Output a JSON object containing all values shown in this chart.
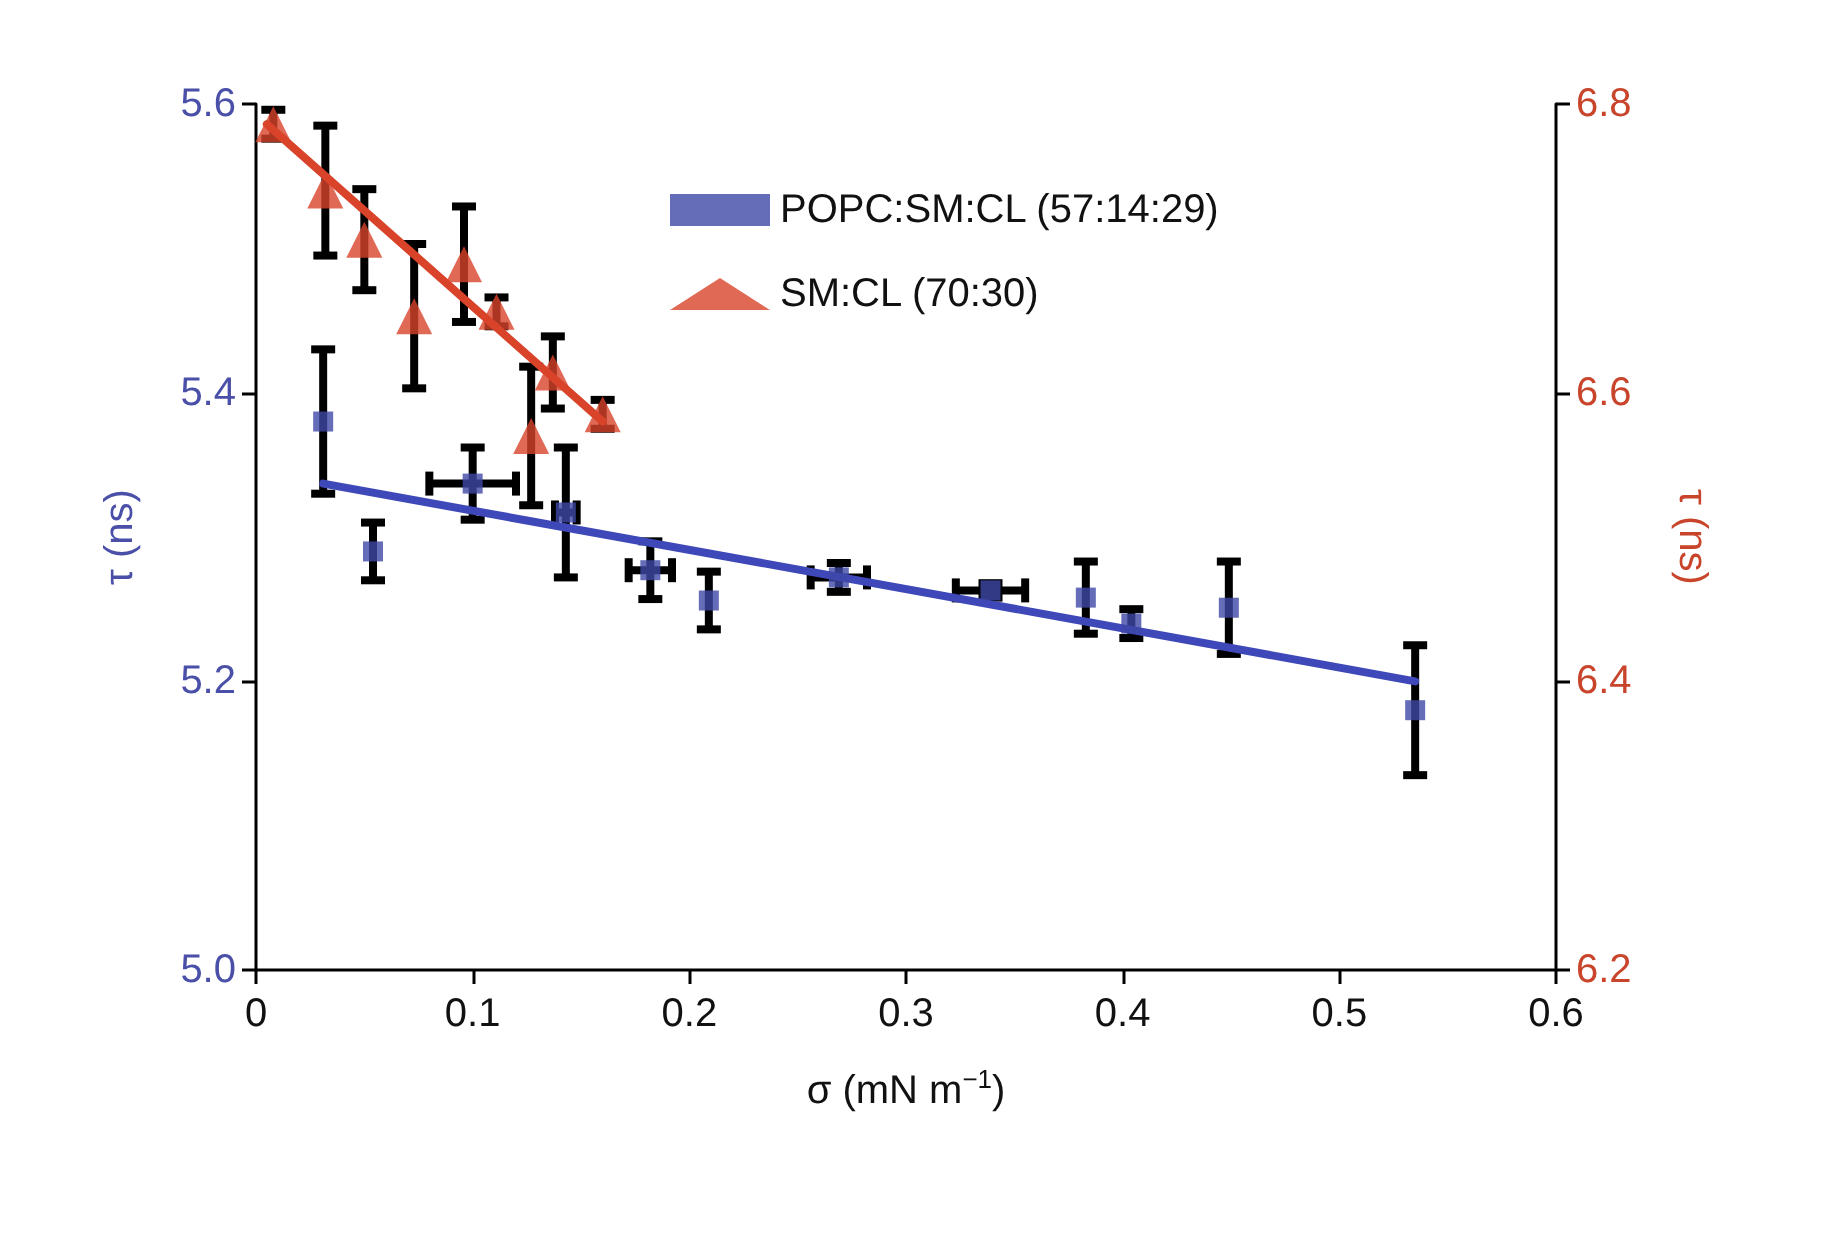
{
  "chart_data": {
    "type": "scatter",
    "xlabel": "σ (mN m$^{−1}$)",
    "ylabel": "τ (ns)",
    "y2label": "τ (ns)",
    "xlim": [
      0,
      0.6
    ],
    "xticks": [
      0,
      0.1,
      0.2,
      0.3,
      0.4,
      0.5,
      0.6
    ],
    "ylim": [
      5.0,
      5.6
    ],
    "yticks": [
      {
        "value": 5,
        "label": "5.0"
      },
      5.2,
      5.4,
      5.6
    ],
    "y2lim": [
      6.2,
      6.8
    ],
    "y2ticks": [
      6.2,
      6.4,
      6.6,
      6.8
    ],
    "grid": false,
    "legend": "top right",
    "series": [
      {
        "name": "POPC:SM:CL (57:14:29)",
        "color": "#3f48a8",
        "marker": "square",
        "x": [
          0.031,
          0.054,
          0.1,
          0.143,
          0.182,
          0.209,
          0.269,
          0.339,
          0.383,
          0.404,
          0.449,
          0.535
        ],
        "values": [
          5.38,
          5.29,
          5.337,
          5.317,
          5.277,
          5.256,
          5.272,
          5.263,
          5.258,
          5.24,
          5.251,
          5.18
        ],
        "errors": [
          [
            5.33,
            5.43
          ],
          0.02,
          0.025,
          0.045,
          0.02,
          0.02,
          0.01,
          0.005,
          0.025,
          0.01,
          0.032,
          0.045
        ],
        "xerrors": [
          null,
          null,
          0.02,
          0.005,
          0.01,
          null,
          0.013,
          0.016,
          null,
          null,
          null,
          null
        ]
      },
      {
        "type": "line",
        "color": "#3f48b8",
        "marker": "none",
        "x": [
          0.031,
          0.535
        ],
        "values": [
          5.337,
          5.2
        ]
      },
      {
        "name": "SM:CL (70:30)",
        "color": "#d8432a",
        "marker": "triangle",
        "axis": "y2",
        "x": [
          0.008,
          0.032,
          0.05,
          0.073,
          0.096,
          0.111,
          0.127,
          0.137,
          0.16
        ],
        "values": [
          6.786,
          6.74,
          6.706,
          6.653,
          6.689,
          6.656,
          6.57,
          6.614,
          6.585
        ],
        "errors": [
          0.01,
          0.045,
          0.035,
          0.05,
          0.04,
          0.01,
          0.048,
          0.025,
          0.01
        ]
      },
      {
        "type": "line",
        "color": "#d8432a",
        "marker": "none",
        "axis": "y2",
        "x": [
          0.005,
          0.16
        ],
        "values": [
          6.786,
          6.58
        ]
      }
    ]
  }
}
